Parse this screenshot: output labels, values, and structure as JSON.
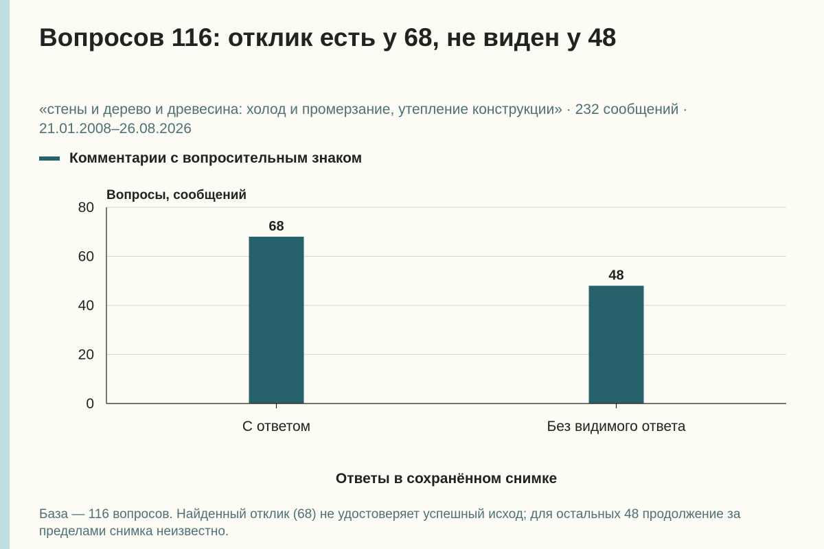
{
  "header": {
    "title": "Вопросов 116: отклик есть у 68, не виден у 48",
    "subtitle": "«стены и дерево и древесина: холод и промерзание, утепление конструкции» · 232 сообщений · 21.01.2008–26.08.2026"
  },
  "footnote": "База — 116 вопросов. Найденный отклик (68) не удостоверяет успешный исход; для остальных 48 продолжение за пределами снимка неизвестно.",
  "colors": {
    "bar": "#27616b",
    "grid": "#d5d5d0",
    "axis": "#222222"
  },
  "chart_data": {
    "type": "bar",
    "title": "Вопросов 116: отклик есть у 68, не виден у 48",
    "categories": [
      "С ответом",
      "Без видимого ответа"
    ],
    "series": [
      {
        "name": "Комментарии с вопросительным знаком",
        "values": [
          68,
          48
        ]
      }
    ],
    "data_labels": [
      "68",
      "48"
    ],
    "xlabel": "Ответы в сохранённом снимке",
    "ylabel": "Вопросы, сообщений",
    "ylim": [
      0,
      80
    ],
    "yticks": [
      0,
      20,
      40,
      60,
      80
    ],
    "grid": true,
    "legend": "top-left"
  }
}
